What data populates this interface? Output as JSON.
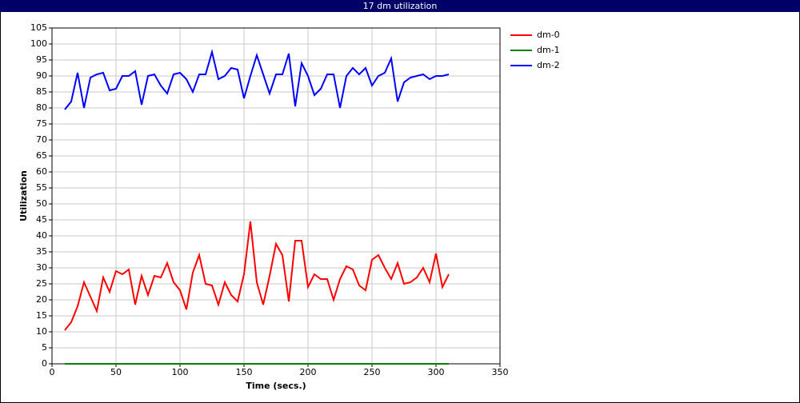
{
  "chart_data": {
    "type": "line",
    "title": "17 dm utilization",
    "x_label": "Time (secs.)",
    "y_label": "Utilization",
    "x": [
      10,
      15,
      20,
      25,
      30,
      35,
      40,
      45,
      50,
      55,
      60,
      65,
      70,
      75,
      80,
      85,
      90,
      95,
      100,
      105,
      110,
      115,
      120,
      125,
      130,
      135,
      140,
      145,
      150,
      155,
      160,
      165,
      170,
      175,
      180,
      185,
      190,
      195,
      200,
      205,
      210,
      215,
      220,
      225,
      230,
      235,
      240,
      245,
      250,
      255,
      260,
      265,
      270,
      275,
      280,
      285,
      290,
      295,
      300,
      305,
      310
    ],
    "series": [
      {
        "name": "dm-0",
        "color": "#ff0000",
        "values": [
          10.5,
          13,
          18,
          25.5,
          21,
          16.5,
          27,
          22.5,
          29,
          28,
          29.5,
          18.5,
          27.5,
          21.5,
          27.5,
          27,
          31.5,
          25.5,
          23,
          17,
          28.5,
          34,
          25,
          24.5,
          18.5,
          25.5,
          21.5,
          19.5,
          28,
          44.5,
          25.5,
          18.5,
          27.5,
          37.5,
          34,
          19.5,
          38.5,
          38.5,
          24,
          28,
          26.5,
          26.5,
          20,
          26.5,
          30.5,
          29.5,
          24.5,
          23,
          32.5,
          34,
          30,
          26.5,
          31.5,
          25,
          25.5,
          27,
          30,
          25.5,
          34.5,
          24,
          28
        ]
      },
      {
        "name": "dm-1",
        "color": "#008000",
        "values": [
          0,
          0,
          0,
          0,
          0,
          0,
          0,
          0,
          0,
          0,
          0,
          0,
          0,
          0,
          0,
          0,
          0,
          0,
          0,
          0,
          0,
          0,
          0,
          0,
          0,
          0,
          0,
          0,
          0,
          0,
          0,
          0,
          0,
          0,
          0,
          0,
          0,
          0,
          0,
          0,
          0,
          0,
          0,
          0,
          0,
          0,
          0,
          0,
          0,
          0,
          0,
          0,
          0,
          0,
          0,
          0,
          0,
          0,
          0,
          0,
          0
        ]
      },
      {
        "name": "dm-2",
        "color": "#0000ff",
        "values": [
          79.5,
          82,
          91,
          80,
          89.5,
          90.5,
          91,
          85.5,
          86,
          90,
          90,
          91.5,
          81,
          90,
          90.5,
          87,
          84.5,
          90.5,
          91,
          89,
          85,
          90.5,
          90.5,
          97.5,
          89,
          90,
          92.5,
          92,
          83,
          90,
          96.5,
          90.5,
          84.5,
          90.5,
          90.5,
          97,
          80.5,
          94,
          90,
          84,
          86,
          90.5,
          90.5,
          80,
          90,
          92.5,
          90.5,
          92.5,
          87,
          90,
          91,
          95.5,
          82,
          88,
          89.5,
          90,
          90.5,
          89,
          90,
          90,
          90.5
        ]
      }
    ],
    "xlim": [
      0,
      350
    ],
    "xticks": [
      0,
      50,
      100,
      150,
      200,
      250,
      300,
      350
    ],
    "ylim": [
      0,
      105
    ],
    "yticks": [
      0,
      5,
      10,
      15,
      20,
      25,
      30,
      35,
      40,
      45,
      50,
      55,
      60,
      65,
      70,
      75,
      80,
      85,
      90,
      95,
      100,
      105
    ],
    "grid": true,
    "legend": "right"
  }
}
